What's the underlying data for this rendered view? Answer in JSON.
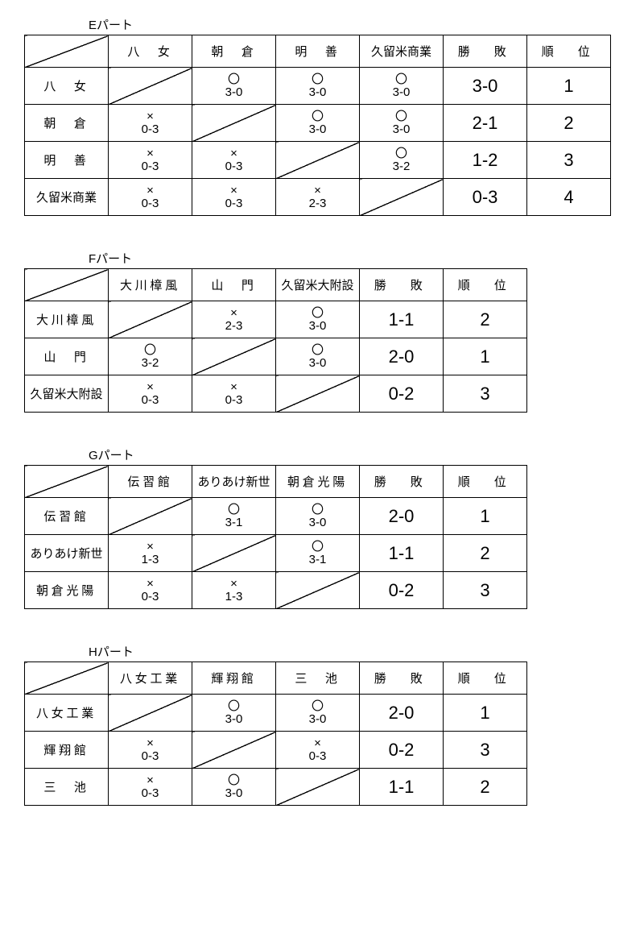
{
  "groups": [
    {
      "title": "Eパート",
      "teams": [
        "八　女",
        "朝　倉",
        "明　善",
        "久留米商業"
      ],
      "wl_header": "勝　敗",
      "rank_header": "順　位",
      "rows": [
        {
          "name": "八　女",
          "cells": [
            null,
            {
              "m": "〇",
              "s": "3-0"
            },
            {
              "m": "〇",
              "s": "3-0"
            },
            {
              "m": "〇",
              "s": "3-0"
            }
          ],
          "wl": "3-0",
          "rank": "1"
        },
        {
          "name": "朝　倉",
          "cells": [
            {
              "m": "×",
              "s": "0-3"
            },
            null,
            {
              "m": "〇",
              "s": "3-0"
            },
            {
              "m": "〇",
              "s": "3-0"
            }
          ],
          "wl": "2-1",
          "rank": "2"
        },
        {
          "name": "明　善",
          "cells": [
            {
              "m": "×",
              "s": "0-3"
            },
            {
              "m": "×",
              "s": "0-3"
            },
            null,
            {
              "m": "〇",
              "s": "3-2"
            }
          ],
          "wl": "1-2",
          "rank": "3"
        },
        {
          "name": "久留米商業",
          "cells": [
            {
              "m": "×",
              "s": "0-3"
            },
            {
              "m": "×",
              "s": "0-3"
            },
            {
              "m": "×",
              "s": "2-3"
            },
            null
          ],
          "wl": "0-3",
          "rank": "4"
        }
      ]
    },
    {
      "title": "Fパート",
      "teams": [
        "大川樟風",
        "山　門",
        "久留米大附設"
      ],
      "wl_header": "勝　敗",
      "rank_header": "順　位",
      "rows": [
        {
          "name": "大川樟風",
          "cells": [
            null,
            {
              "m": "×",
              "s": "2-3"
            },
            {
              "m": "〇",
              "s": "3-0"
            }
          ],
          "wl": "1-1",
          "rank": "2"
        },
        {
          "name": "山　門",
          "cells": [
            {
              "m": "〇",
              "s": "3-2"
            },
            null,
            {
              "m": "〇",
              "s": "3-0"
            }
          ],
          "wl": "2-0",
          "rank": "1"
        },
        {
          "name": "久留米大附設",
          "cells": [
            {
              "m": "×",
              "s": "0-3"
            },
            {
              "m": "×",
              "s": "0-3"
            },
            null
          ],
          "wl": "0-2",
          "rank": "3"
        }
      ]
    },
    {
      "title": "Gパート",
      "teams": [
        "伝習館",
        "ありあけ新世",
        "朝倉光陽"
      ],
      "wl_header": "勝　敗",
      "rank_header": "順　位",
      "rows": [
        {
          "name": "伝習館",
          "cells": [
            null,
            {
              "m": "〇",
              "s": "3-1"
            },
            {
              "m": "〇",
              "s": "3-0"
            }
          ],
          "wl": "2-0",
          "rank": "1"
        },
        {
          "name": "ありあけ新世",
          "cells": [
            {
              "m": "×",
              "s": "1-3"
            },
            null,
            {
              "m": "〇",
              "s": "3-1"
            }
          ],
          "wl": "1-1",
          "rank": "2"
        },
        {
          "name": "朝倉光陽",
          "cells": [
            {
              "m": "×",
              "s": "0-3"
            },
            {
              "m": "×",
              "s": "1-3"
            },
            null
          ],
          "wl": "0-2",
          "rank": "3"
        }
      ]
    },
    {
      "title": "Hパート",
      "teams": [
        "八女工業",
        "輝翔館",
        "三　池"
      ],
      "wl_header": "勝　敗",
      "rank_header": "順　位",
      "rows": [
        {
          "name": "八女工業",
          "cells": [
            null,
            {
              "m": "〇",
              "s": "3-0"
            },
            {
              "m": "〇",
              "s": "3-0"
            }
          ],
          "wl": "2-0",
          "rank": "1"
        },
        {
          "name": "輝翔館",
          "cells": [
            {
              "m": "×",
              "s": "0-3"
            },
            null,
            {
              "m": "×",
              "s": "0-3"
            }
          ],
          "wl": "0-2",
          "rank": "3"
        },
        {
          "name": "三　池",
          "cells": [
            {
              "m": "×",
              "s": "0-3"
            },
            {
              "m": "〇",
              "s": "3-0"
            },
            null
          ],
          "wl": "1-1",
          "rank": "2"
        }
      ]
    }
  ]
}
